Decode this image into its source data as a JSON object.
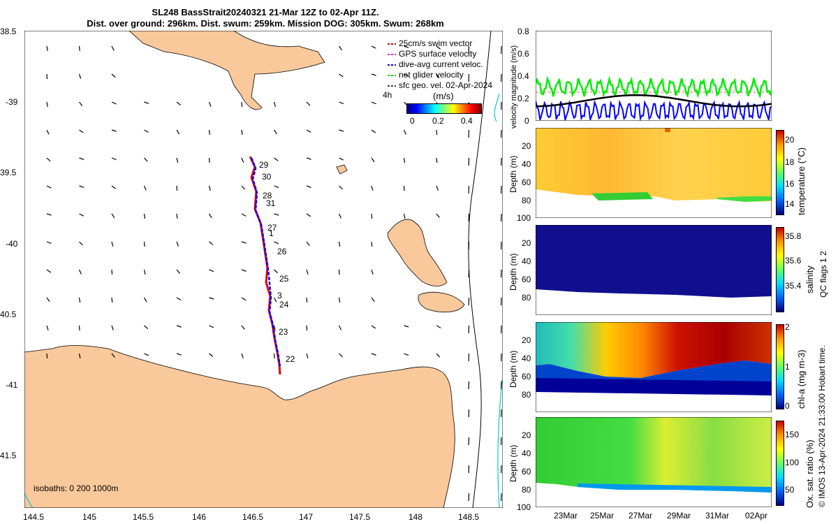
{
  "title_line1": "SL248 BassStrait20240321 21-Mar 12Z to 02-Apr 11Z.",
  "title_line2": "Dist. over ground: 296km. Dist. swum: 259km. Mission DOG: 305km. Swum: 268km",
  "map": {
    "lon_ticks": [
      "144.5",
      "145",
      "145.5",
      "146",
      "146.5",
      "147",
      "147.5",
      "148",
      "148.5"
    ],
    "lat_ticks": [
      "38.5",
      "-39",
      "39.5",
      "-40",
      "40.5",
      "-41",
      "41.5"
    ],
    "isobaths_label": "isobaths: 0   200  1000m",
    "legend": [
      {
        "label": "25cm/s swim vector",
        "color": "#d40000"
      },
      {
        "label": "GPS surface velocity",
        "color": "#cc33cc"
      },
      {
        "label": "dive-avg current veloc.",
        "color": "#0000ff"
      },
      {
        "label": "net glider velocity",
        "color": "#00dd00"
      },
      {
        "label": "sfc geo. vel. 02-Apr-2024",
        "color": "#000000"
      }
    ],
    "legend_scale_label": "4h",
    "colorbar": {
      "unit": "(m/s)",
      "ticks": [
        "0",
        "0.2",
        "0.4"
      ]
    },
    "day_labels": [
      "29",
      "30",
      "28",
      "31",
      "27",
      "1",
      "26",
      "25",
      "3",
      "24",
      "23",
      "22"
    ],
    "land_color": "#f9c89b",
    "track_color_red": "#e00000",
    "track_color_blue": "#0000ff"
  },
  "panels": {
    "velocity": {
      "ylabel": "velocity magnitude (m/s)",
      "ticks": [
        "0.8",
        "0.6",
        "0.4",
        "0.2",
        "0"
      ]
    },
    "temperature": {
      "ylabel": "Depth (m)",
      "cblabel": "temperature (°C)",
      "cbticks": [
        "20",
        "18",
        "16",
        "14"
      ]
    },
    "salinity": {
      "ylabel": "Depth (m)",
      "cblabel": "salinity",
      "cbticks": [
        "35.8",
        "35.6",
        "35.4"
      ]
    },
    "chla": {
      "ylabel": "Depth (m)",
      "cblabel": "chl-a (mg m-3)",
      "cbticks": [
        "2",
        "1",
        "0"
      ]
    },
    "oxygen": {
      "ylabel": "Depth (m)",
      "cblabel": "Ox. sat. ratio (%)",
      "cbticks": [
        "150",
        "100",
        "50"
      ]
    },
    "depth_ticks": [
      "20",
      "40",
      "60",
      "80",
      "100"
    ],
    "time_ticks": [
      "23Mar",
      "25Mar",
      "27Mar",
      "29Mar",
      "31Mar",
      "02Apr"
    ]
  },
  "qc_flags_label": "QC flags 1  2",
  "credit": "© IMOS 13-Apr-2024 21:33:00 Hobart time."
}
